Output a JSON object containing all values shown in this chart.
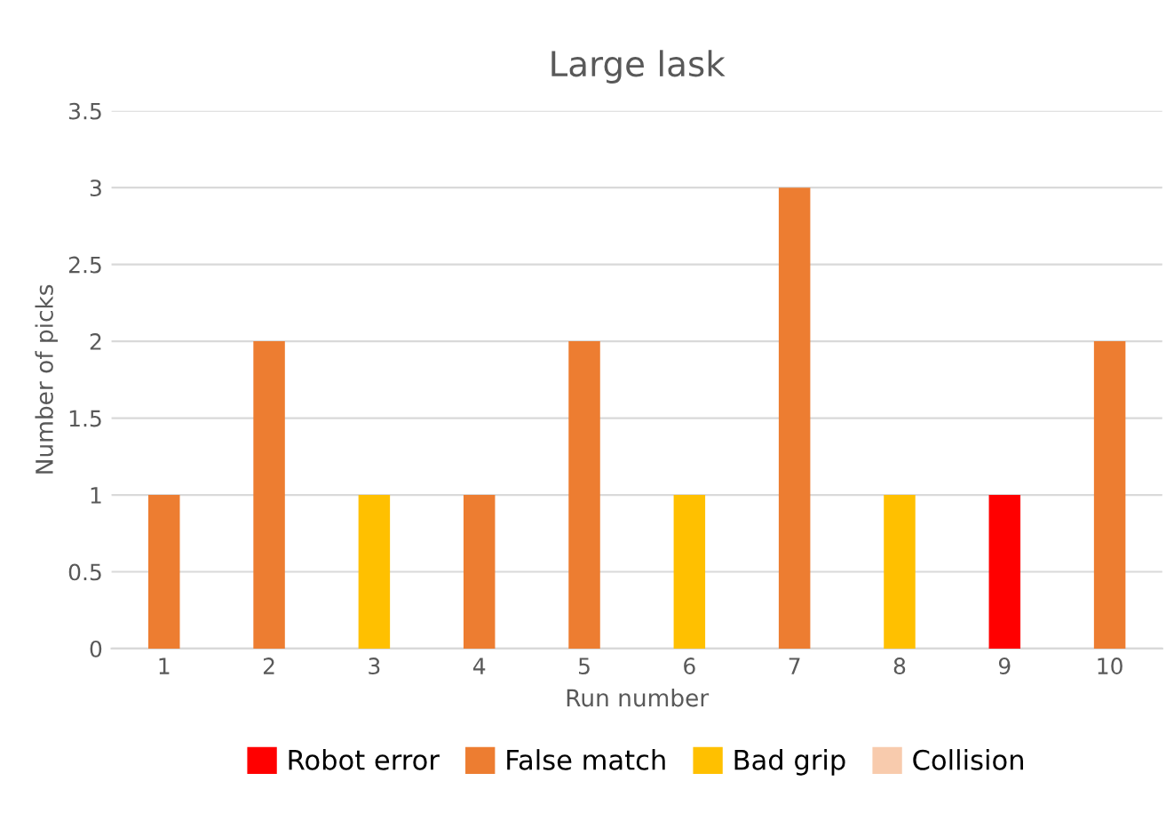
{
  "chart_data": {
    "type": "bar",
    "title": "Large lask",
    "xlabel": "Run number",
    "ylabel": "Number of picks",
    "categories": [
      "1",
      "2",
      "3",
      "4",
      "5",
      "6",
      "7",
      "8",
      "9",
      "10"
    ],
    "stacked": true,
    "series": [
      {
        "name": "Robot error",
        "color": "#ff0000",
        "values": [
          0,
          0,
          0,
          0,
          0,
          0,
          0,
          0,
          1,
          0
        ]
      },
      {
        "name": "False match",
        "color": "#ed7d31",
        "values": [
          1,
          2,
          0,
          1,
          2,
          0,
          3,
          0,
          0,
          2
        ]
      },
      {
        "name": "Bad grip",
        "color": "#ffc000",
        "values": [
          0,
          0,
          1,
          0,
          0,
          1,
          0,
          1,
          0,
          0
        ]
      },
      {
        "name": "Collision",
        "color": "#f8cbad",
        "values": [
          0,
          0,
          0,
          0,
          0,
          0,
          0,
          0,
          0,
          0
        ]
      }
    ],
    "ylim": [
      0,
      3.5
    ],
    "yticks": [
      0,
      0.5,
      1,
      1.5,
      2,
      2.5,
      3,
      3.5
    ],
    "grid": "y",
    "legend": "bottom"
  }
}
